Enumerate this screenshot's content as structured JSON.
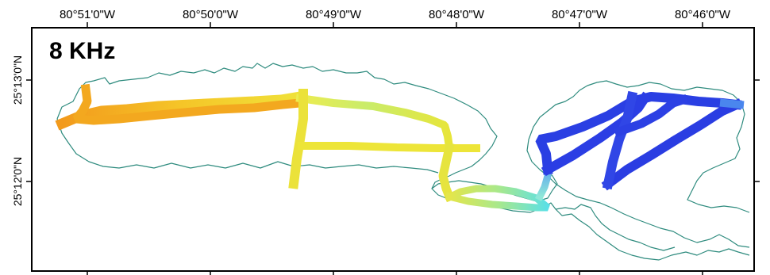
{
  "map": {
    "panel_label": "8 KHz",
    "longitude_ticks": [
      "80°51'0\"W",
      "80°50'0\"W",
      "80°49'0\"W",
      "80°48'0\"W",
      "80°47'0\"W",
      "80°46'0\"W"
    ],
    "latitude_ticks": [
      "25°13'0\"N",
      "25°12'0\"N"
    ],
    "colors": {
      "coastline": "#2e8b7e",
      "frame": "#000000",
      "track_low": "#1f3fe0",
      "track_mid": "#e8e53a",
      "track_high": "#f29a1c"
    },
    "track_segments": [
      {
        "name": "west-leg-orange"
      },
      {
        "name": "north-transect"
      },
      {
        "name": "central-crossline"
      },
      {
        "name": "vertical-connector"
      },
      {
        "name": "south-loop"
      },
      {
        "name": "east-survey-blue"
      }
    ]
  }
}
